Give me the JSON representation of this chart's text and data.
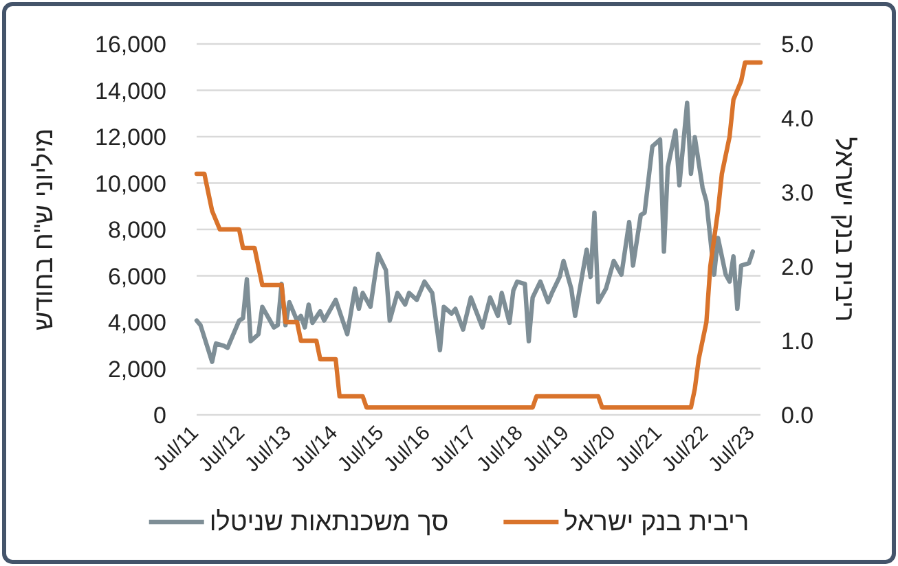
{
  "chart_data": {
    "type": "line",
    "ylabel": "מיליוני ש\"ח בחודש",
    "y2label": "ריבית בנק ישראל",
    "xlim": [
      "2011-07",
      "2023-09"
    ],
    "xticks": [
      {
        "value": "2011-07",
        "label": "Jul/11"
      },
      {
        "value": "2012-07",
        "label": "Jul/12"
      },
      {
        "value": "2013-07",
        "label": "Jul/13"
      },
      {
        "value": "2014-07",
        "label": "Jul/14"
      },
      {
        "value": "2015-07",
        "label": "Jul/15"
      },
      {
        "value": "2016-07",
        "label": "Jul/16"
      },
      {
        "value": "2017-07",
        "label": "Jul/17"
      },
      {
        "value": "2018-07",
        "label": "Jul/18"
      },
      {
        "value": "2019-07",
        "label": "Jul/19"
      },
      {
        "value": "2020-07",
        "label": "Jul/20"
      },
      {
        "value": "2021-07",
        "label": "Jul/21"
      },
      {
        "value": "2022-07",
        "label": "Jul/22"
      },
      {
        "value": "2023-07",
        "label": "Jul/23"
      }
    ],
    "ylim": [
      0,
      16000
    ],
    "yticks": [
      0,
      {
        "value": 2000,
        "label": "2,000"
      },
      {
        "value": 4000,
        "label": "4,000"
      },
      {
        "value": 6000,
        "label": "6,000"
      },
      {
        "value": 8000,
        "label": "8,000"
      },
      {
        "value": 10000,
        "label": "10,000"
      },
      {
        "value": 12000,
        "label": "12,000"
      },
      {
        "value": 14000,
        "label": "14,000"
      },
      {
        "value": 16000,
        "label": "16,000"
      }
    ],
    "y2lim": [
      0,
      5
    ],
    "y2ticks": [
      {
        "value": 0,
        "label": "0.0"
      },
      {
        "value": 1,
        "label": "1.0"
      },
      {
        "value": 2,
        "label": "2.0"
      },
      {
        "value": 3,
        "label": "3.0"
      },
      {
        "value": 4,
        "label": "4.0"
      },
      {
        "value": 5,
        "label": "5.0"
      }
    ],
    "grid": "y",
    "legend": "bottom",
    "series": [
      {
        "name": "סך משכנתאות שניטלו",
        "color": "#7e8e96",
        "x": [
          "2011-07",
          "2011-08",
          "2011-11",
          "2011-12",
          "2012-02",
          "2012-03",
          "2012-04",
          "2012-06",
          "2012-07",
          "2012-08",
          "2012-09",
          "2012-11",
          "2012-12",
          "2013-02",
          "2013-03",
          "2013-04",
          "2013-05",
          "2013-06",
          "2013-07",
          "2013-09",
          "2013-10",
          "2013-11",
          "2013-12",
          "2014-01",
          "2014-03",
          "2014-04",
          "2014-07",
          "2014-10",
          "2014-12",
          "2015-01",
          "2015-02",
          "2015-04",
          "2015-06",
          "2015-08",
          "2015-09",
          "2015-11",
          "2016-01",
          "2016-02",
          "2016-04",
          "2016-06",
          "2016-08",
          "2016-10",
          "2016-11",
          "2017-01",
          "2017-02",
          "2017-04",
          "2017-06",
          "2017-09",
          "2017-11",
          "2018-01",
          "2018-02",
          "2018-04",
          "2018-05",
          "2018-06",
          "2018-08",
          "2018-09",
          "2018-10",
          "2018-12",
          "2019-02",
          "2019-03",
          "2019-05",
          "2019-06",
          "2019-08",
          "2019-09",
          "2019-12",
          "2020-01",
          "2020-02",
          "2020-03",
          "2020-05",
          "2020-07",
          "2020-09",
          "2020-11",
          "2020-12",
          "2021-02",
          "2021-03",
          "2021-05",
          "2021-07",
          "2021-08",
          "2021-09",
          "2021-11",
          "2021-12",
          "2022-02",
          "2022-03",
          "2022-04",
          "2022-06",
          "2022-07",
          "2022-09",
          "2022-10",
          "2022-12",
          "2023-01",
          "2023-02",
          "2023-03",
          "2023-04",
          "2023-06",
          "2023-07"
        ],
        "values": [
          4070,
          3870,
          2290,
          3080,
          2980,
          2890,
          3280,
          4070,
          4170,
          5850,
          3180,
          3480,
          4660,
          4070,
          3770,
          3870,
          5650,
          3870,
          4860,
          4070,
          4270,
          3770,
          4760,
          3970,
          4470,
          4070,
          4960,
          3480,
          5450,
          4570,
          5260,
          4660,
          6940,
          6250,
          4070,
          5260,
          4760,
          5260,
          4960,
          5750,
          5260,
          2790,
          4660,
          4370,
          4570,
          3680,
          5060,
          3770,
          5060,
          4270,
          5260,
          3970,
          5360,
          5750,
          5650,
          3180,
          5060,
          5750,
          4860,
          5260,
          5950,
          6640,
          5450,
          4270,
          7130,
          5950,
          8720,
          4860,
          5450,
          6640,
          6050,
          8320,
          6440,
          8620,
          8720,
          11580,
          11880,
          7040,
          10690,
          12270,
          9900,
          13460,
          10400,
          11980,
          9800,
          9210,
          6050,
          7630,
          6050,
          5750,
          6840,
          4570,
          6440,
          6540,
          7040
        ]
      },
      {
        "name": "ריבית בנק ישראל",
        "color": "#d9732b",
        "axis": "y2",
        "x": [
          "2011-07",
          "2011-09",
          "2011-10",
          "2011-11",
          "2012-01",
          "2012-06",
          "2012-07",
          "2012-10",
          "2012-11",
          "2012-12",
          "2013-05",
          "2013-06",
          "2013-09",
          "2013-10",
          "2014-02",
          "2014-03",
          "2014-07",
          "2014-08",
          "2015-02",
          "2015-03",
          "2018-10",
          "2018-11",
          "2020-03",
          "2020-04",
          "2022-03",
          "2022-04",
          "2022-05",
          "2022-07",
          "2022-08",
          "2022-10",
          "2022-11",
          "2023-01",
          "2023-02",
          "2023-04",
          "2023-05",
          "2023-09"
        ],
        "values": [
          3.25,
          3.25,
          3.0,
          2.75,
          2.5,
          2.5,
          2.25,
          2.25,
          2.0,
          1.75,
          1.75,
          1.25,
          1.25,
          1.0,
          1.0,
          0.75,
          0.75,
          0.25,
          0.25,
          0.1,
          0.1,
          0.25,
          0.25,
          0.1,
          0.1,
          0.35,
          0.75,
          1.25,
          2.0,
          2.75,
          3.25,
          3.75,
          4.25,
          4.5,
          4.75,
          4.75
        ]
      }
    ]
  }
}
